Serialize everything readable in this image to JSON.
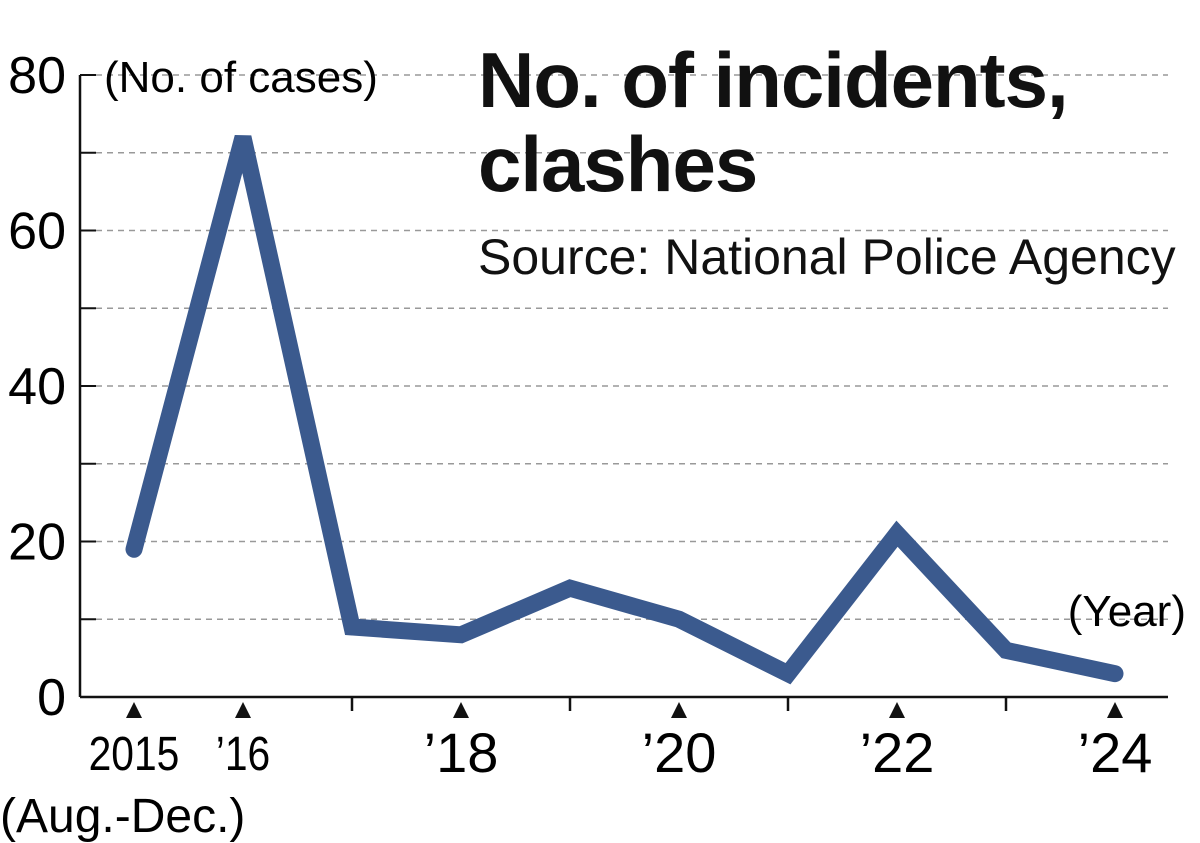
{
  "chart_data": {
    "type": "line",
    "title": "No. of incidents, clashes",
    "subtitle": "Source: National Police Agency",
    "ylabel": "(No. of cases)",
    "xlabel": "(Year)",
    "ylim": [
      0,
      80
    ],
    "yticks": [
      0,
      20,
      40,
      60,
      80
    ],
    "grid": true,
    "x": [
      2015,
      2016,
      2017,
      2018,
      2019,
      2020,
      2021,
      2022,
      2023,
      2024
    ],
    "xtick_labels": [
      {
        "year": 2015,
        "label": "2015",
        "note": "(Aug.-Dec.)"
      },
      {
        "year": 2016,
        "label": "’16"
      },
      {
        "year": 2018,
        "label": "’18"
      },
      {
        "year": 2020,
        "label": "’20"
      },
      {
        "year": 2022,
        "label": "’22"
      },
      {
        "year": 2024,
        "label": "’24"
      }
    ],
    "series": [
      {
        "name": "No. of incidents, clashes",
        "color": "#3b5a8e",
        "values": [
          19,
          72,
          9,
          8,
          14,
          10,
          3,
          21,
          6,
          3
        ]
      }
    ]
  }
}
